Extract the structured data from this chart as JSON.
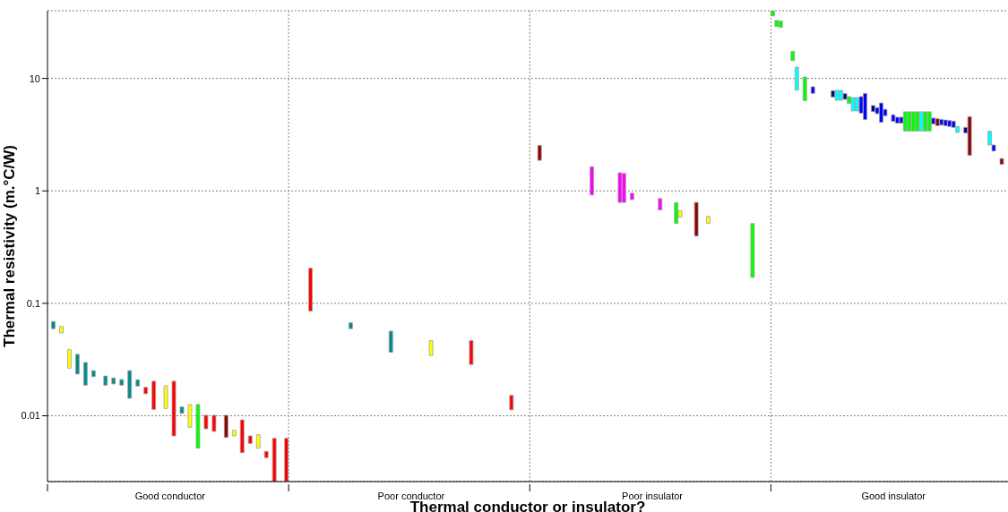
{
  "chart_data": {
    "type": "bar",
    "xlabel": "Thermal conductor or insulator?",
    "ylabel": "Thermal resistivity (m.°C/W)",
    "categories": [
      null,
      null,
      null,
      null,
      null,
      null,
      null,
      null,
      null,
      null,
      null,
      null,
      null,
      null,
      null,
      null,
      null,
      null,
      null,
      null,
      null,
      null,
      null,
      null,
      null,
      null,
      null,
      null,
      null,
      null,
      "Good conductor",
      null,
      null,
      null,
      null,
      null,
      null,
      null,
      null,
      null,
      null,
      null,
      null,
      null,
      null,
      null,
      null,
      null,
      null,
      null,
      null,
      null,
      null,
      null,
      null,
      null,
      null,
      null,
      null,
      null,
      null,
      null,
      null,
      null,
      null,
      null,
      null,
      null,
      null,
      null,
      null,
      null,
      null,
      null,
      null,
      null,
      null,
      null,
      null,
      null,
      null,
      null,
      null,
      null,
      null,
      null,
      null,
      null,
      null,
      null,
      "Poor conductor",
      null,
      null,
      null,
      null,
      null,
      null,
      null,
      null,
      null,
      null,
      null,
      null,
      null,
      null,
      null,
      null,
      null,
      null,
      null,
      null,
      null,
      null,
      null,
      null,
      null,
      null,
      null,
      null,
      null,
      null,
      null,
      null,
      null,
      null,
      null,
      null,
      null,
      null,
      null,
      null,
      null,
      null,
      null,
      null,
      null,
      null,
      null,
      null,
      null,
      null,
      null,
      null,
      null,
      null,
      null,
      null,
      null,
      null,
      null,
      "Poor insulator",
      null,
      null,
      null,
      null,
      null,
      null,
      null,
      null,
      null,
      null,
      null,
      null,
      null,
      null,
      null,
      null,
      null,
      null,
      null,
      null,
      null,
      null,
      null,
      null,
      null,
      null,
      null,
      null,
      null,
      null,
      null,
      null,
      null,
      null,
      null,
      null,
      null,
      null,
      null,
      null,
      null,
      null,
      null,
      null,
      null,
      null,
      null,
      null,
      null,
      null,
      null,
      null,
      null,
      null,
      null,
      null,
      null,
      null,
      null,
      "Good insulator",
      null,
      null,
      null,
      null,
      null,
      null,
      null,
      null,
      null,
      null,
      null,
      null,
      null,
      null,
      null,
      null,
      null,
      null,
      null,
      null,
      null,
      null,
      null,
      null,
      null,
      null,
      null,
      null
    ],
    "base": [
      null,
      0.0595,
      null,
      0.0546,
      null,
      0.0265,
      null,
      0.0235,
      null,
      0.0187,
      null,
      0.0223,
      null,
      null,
      0.0187,
      null,
      0.0192,
      null,
      0.0187,
      null,
      0.0143,
      null,
      0.0184,
      null,
      0.0157,
      null,
      0.0114,
      null,
      null,
      0.0116,
      null,
      0.00662,
      null,
      0.0105,
      null,
      0.0079,
      null,
      0.00515,
      null,
      0.00766,
      null,
      0.00726,
      null,
      null,
      0.00641,
      null,
      0.00662,
      null,
      0.0047,
      null,
      0.00568,
      null,
      0.00515,
      null,
      0.00424,
      null,
      0.0026,
      null,
      null,
      0.0026,
      null,
      null,
      null,
      null,
      null,
      0.0853,
      null,
      null,
      null,
      null,
      null,
      null,
      null,
      null,
      null,
      0.0595,
      null,
      null,
      null,
      null,
      null,
      null,
      null,
      null,
      null,
      0.0367,
      null,
      null,
      null,
      null,
      null,
      null,
      null,
      null,
      null,
      0.0343,
      null,
      null,
      null,
      null,
      null,
      null,
      null,
      null,
      null,
      0.0286,
      null,
      null,
      null,
      null,
      null,
      null,
      null,
      null,
      null,
      0.0113,
      null,
      null,
      null,
      null,
      null,
      null,
      1.87,
      null,
      null,
      null,
      null,
      null,
      null,
      null,
      null,
      null,
      null,
      null,
      null,
      0.92,
      null,
      null,
      null,
      null,
      null,
      null,
      0.79,
      0.79,
      null,
      0.836,
      null,
      null,
      null,
      null,
      null,
      null,
      0.678,
      null,
      null,
      null,
      0.515,
      0.582,
      null,
      null,
      null,
      0.396,
      null,
      null,
      0.515,
      null,
      null,
      null,
      null,
      null,
      null,
      null,
      null,
      null,
      null,
      0.17,
      null,
      null,
      null,
      null,
      35.9,
      29,
      28.5,
      null,
      null,
      14.4,
      7.87,
      null,
      6.36,
      null,
      7.36,
      null,
      null,
      null,
      null,
      6.84,
      6.4,
      6.4,
      6.52,
      6.01,
      5.14,
      5.14,
      4.92,
      4.3,
      null,
      5.07,
      4.86,
      4.07,
      4.66,
      null,
      4.15,
      4.0,
      4.0,
      3.41,
      3.41,
      3.41,
      3.41,
      3.41,
      3.41,
      3.41,
      3.94,
      3.8,
      3.85,
      3.8,
      3.74,
      3.67,
      3.31,
      null,
      3.27,
      2.07,
      null,
      null,
      null,
      null,
      2.56,
      2.26,
      null,
      1.72,
      null
    ],
    "values": [
      null,
      0.0094,
      null,
      0.0078,
      null,
      0.0122,
      null,
      0.0117,
      null,
      0.0111,
      null,
      0.0029,
      null,
      null,
      0.0039,
      null,
      0.0025,
      null,
      0.0023,
      null,
      0.0109,
      null,
      0.0025,
      null,
      0.0022,
      null,
      0.0089,
      null,
      null,
      0.0069,
      null,
      0.01368,
      null,
      0.0015,
      null,
      0.0047,
      null,
      0.00745,
      null,
      0.00244,
      null,
      0.00284,
      null,
      null,
      0.00369,
      null,
      0.00081,
      null,
      0.0045,
      null,
      0.00094,
      null,
      0.00164,
      null,
      0.00058,
      null,
      0.0037,
      null,
      null,
      0.0037,
      null,
      null,
      null,
      null,
      null,
      0.1197,
      null,
      null,
      null,
      null,
      null,
      null,
      null,
      null,
      null,
      0.0077,
      null,
      null,
      null,
      null,
      null,
      null,
      null,
      null,
      null,
      0.0199,
      null,
      null,
      null,
      null,
      null,
      null,
      null,
      null,
      null,
      0.0123,
      null,
      null,
      null,
      null,
      null,
      null,
      null,
      null,
      null,
      0.018,
      null,
      null,
      null,
      null,
      null,
      null,
      null,
      null,
      null,
      0.0039,
      null,
      null,
      null,
      null,
      null,
      null,
      0.67,
      null,
      null,
      null,
      null,
      null,
      null,
      null,
      null,
      null,
      null,
      null,
      null,
      0.72,
      null,
      null,
      null,
      null,
      null,
      null,
      0.66,
      0.64,
      null,
      0.119,
      null,
      null,
      null,
      null,
      null,
      null,
      0.177,
      null,
      null,
      null,
      0.27,
      0.083,
      null,
      null,
      null,
      0.394,
      null,
      null,
      0.078,
      null,
      null,
      null,
      null,
      null,
      null,
      null,
      null,
      null,
      null,
      0.342,
      null,
      null,
      null,
      null,
      4.1,
      3.8,
      3.9,
      null,
      null,
      3,
      4.73,
      null,
      3.94,
      null,
      1.07,
      null,
      null,
      null,
      null,
      0.95,
      1.43,
      1.43,
      0.81,
      0.88,
      1.62,
      1.62,
      1.97,
      3.06,
      null,
      0.67,
      0.64,
      1.98,
      0.65,
      null,
      0.6,
      0.52,
      0.52,
      1.64,
      1.64,
      1.64,
      1.64,
      1.64,
      1.64,
      1.64,
      0.5,
      0.58,
      0.47,
      0.47,
      0.48,
      0.5,
      0.43,
      null,
      0.4,
      2.5,
      null,
      null,
      null,
      null,
      0.83,
      0.3,
      null,
      0.22,
      null
    ],
    "colors": [
      null,
      "#008b8b",
      null,
      "#ffff00",
      null,
      "#ffff00",
      null,
      "#008b8b",
      null,
      "#008b8b",
      null,
      "#008b8b",
      null,
      null,
      "#008b8b",
      null,
      "#008b8b",
      null,
      "#008b8b",
      null,
      "#008b8b",
      null,
      "#008b8b",
      null,
      "#ff0000",
      null,
      "#ff0000",
      null,
      null,
      "#ffff00",
      null,
      "#ff0000",
      null,
      "#008b8b",
      null,
      "#ffff00",
      null,
      "#00ff00",
      null,
      "#ff0000",
      null,
      "#ff0000",
      null,
      null,
      "#8b0000",
      null,
      "#ffff00",
      null,
      "#ff0000",
      null,
      "#ff0000",
      null,
      "#ffff00",
      null,
      "#ff0000",
      null,
      "#ff0000",
      null,
      null,
      "#ff0000",
      null,
      null,
      null,
      null,
      null,
      "#ff0000",
      null,
      null,
      null,
      null,
      null,
      null,
      null,
      null,
      null,
      "#008b8b",
      null,
      null,
      null,
      null,
      null,
      null,
      null,
      null,
      null,
      "#008b8b",
      null,
      null,
      null,
      null,
      null,
      null,
      null,
      null,
      null,
      "#ffff00",
      null,
      null,
      null,
      null,
      null,
      null,
      null,
      null,
      null,
      "#ff0000",
      null,
      null,
      null,
      null,
      null,
      null,
      null,
      null,
      null,
      "#ff0000",
      null,
      null,
      null,
      null,
      null,
      null,
      "#8b0000",
      null,
      null,
      null,
      null,
      null,
      null,
      null,
      null,
      null,
      null,
      null,
      null,
      "#ff00ff",
      null,
      null,
      null,
      null,
      null,
      null,
      "#ff00ff",
      "#ff00ff",
      null,
      "#ff00ff",
      null,
      null,
      null,
      null,
      null,
      null,
      "#ff00ff",
      null,
      null,
      null,
      "#00ff00",
      "#ffff00",
      null,
      null,
      null,
      "#8b0000",
      null,
      null,
      "#ffff00",
      null,
      null,
      null,
      null,
      null,
      null,
      null,
      null,
      null,
      null,
      "#00ff00",
      null,
      null,
      null,
      null,
      "#00ff00",
      "#00ff00",
      "#00ff00",
      null,
      null,
      "#00ff00",
      "#00ffff",
      null,
      "#00ff00",
      null,
      "#0000ff",
      null,
      null,
      null,
      null,
      "#00008b",
      "#00ffff",
      "#00ffff",
      "#00008b",
      "#00ff00",
      "#00ffff",
      "#00ffff",
      "#0000ff",
      "#0000ff",
      null,
      "#00008b",
      "#0000ff",
      "#0000ff",
      "#0000ff",
      null,
      "#0000ff",
      "#0000ff",
      "#0000ff",
      "#00ff00",
      "#00ff00",
      "#00ff00",
      "#00ff00",
      "#00ffff",
      "#00ff00",
      "#00ff00",
      "#0000ff",
      "#8b0000",
      "#0000ff",
      "#0000ff",
      "#0000ff",
      "#0000ff",
      "#00ffff",
      null,
      "#00008b",
      "#8b0000",
      null,
      null,
      null,
      null,
      "#00ffff",
      "#0000ff",
      null,
      "#8b0000",
      null
    ],
    "ylim": [
      0.0026,
      40
    ],
    "yticks": [
      0.01,
      0.1,
      1,
      10
    ],
    "log": true,
    "grid": true
  }
}
